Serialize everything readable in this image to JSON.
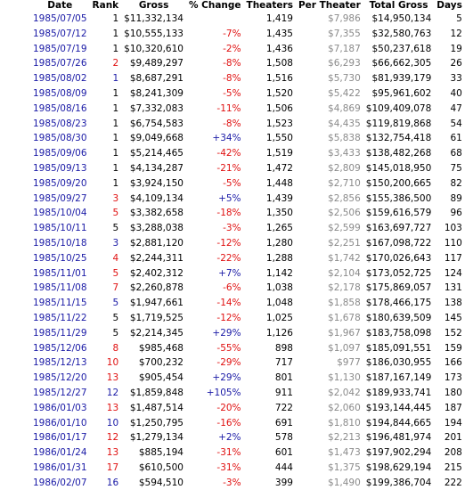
{
  "table": {
    "header": [
      "Date",
      "Rank",
      "Gross",
      "% Change",
      "Theaters",
      "Per Theater",
      "Total Gross",
      "Days"
    ],
    "rows": [
      [
        "1985/07/05",
        "1",
        "$11,332,134",
        null,
        "1,419",
        "$7,986",
        "$14,950,134",
        "5"
      ],
      [
        "1985/07/12",
        "1",
        "$10,555,133",
        "-7%",
        "1,435",
        "$7,355",
        "$32,580,763",
        "12"
      ],
      [
        "1985/07/19",
        "1",
        "$10,320,610",
        "-2%",
        "1,436",
        "$7,187",
        "$50,237,618",
        "19"
      ],
      [
        "1985/07/26",
        "2",
        "$9,489,297",
        "-8%",
        "1,508",
        "$6,293",
        "$66,662,305",
        "26"
      ],
      [
        "1985/08/02",
        "1",
        "$8,687,291",
        "-8%",
        "1,516",
        "$5,730",
        "$81,939,179",
        "33"
      ],
      [
        "1985/08/09",
        "1",
        "$8,241,309",
        "-5%",
        "1,520",
        "$5,422",
        "$95,961,602",
        "40"
      ],
      [
        "1985/08/16",
        "1",
        "$7,332,083",
        "-11%",
        "1,506",
        "$4,869",
        "$109,409,078",
        "47"
      ],
      [
        "1985/08/23",
        "1",
        "$6,754,583",
        "-8%",
        "1,523",
        "$4,435",
        "$119,819,868",
        "54"
      ],
      [
        "1985/08/30",
        "1",
        "$9,049,668",
        "+34%",
        "1,550",
        "$5,838",
        "$132,754,418",
        "61"
      ],
      [
        "1985/09/06",
        "1",
        "$5,214,465",
        "-42%",
        "1,519",
        "$3,433",
        "$138,482,268",
        "68"
      ],
      [
        "1985/09/13",
        "1",
        "$4,134,287",
        "-21%",
        "1,472",
        "$2,809",
        "$145,018,950",
        "75"
      ],
      [
        "1985/09/20",
        "1",
        "$3,924,150",
        "-5%",
        "1,448",
        "$2,710",
        "$150,200,665",
        "82"
      ],
      [
        "1985/09/27",
        "3",
        "$4,109,134",
        "+5%",
        "1,439",
        "$2,856",
        "$155,386,500",
        "89"
      ],
      [
        "1985/10/04",
        "5",
        "$3,382,658",
        "-18%",
        "1,350",
        "$2,506",
        "$159,616,579",
        "96"
      ],
      [
        "1985/10/11",
        "5",
        "$3,288,038",
        "-3%",
        "1,265",
        "$2,599",
        "$163,697,727",
        "103"
      ],
      [
        "1985/10/18",
        "3",
        "$2,881,120",
        "-12%",
        "1,280",
        "$2,251",
        "$167,098,722",
        "110"
      ],
      [
        "1985/10/25",
        "4",
        "$2,244,311",
        "-22%",
        "1,288",
        "$1,742",
        "$170,026,643",
        "117"
      ],
      [
        "1985/11/01",
        "5",
        "$2,402,312",
        "+7%",
        "1,142",
        "$2,104",
        "$173,052,725",
        "124"
      ],
      [
        "1985/11/08",
        "7",
        "$2,260,878",
        "-6%",
        "1,038",
        "$2,178",
        "$175,869,057",
        "131"
      ],
      [
        "1985/11/15",
        "5",
        "$1,947,661",
        "-14%",
        "1,048",
        "$1,858",
        "$178,466,175",
        "138"
      ],
      [
        "1985/11/22",
        "5",
        "$1,719,525",
        "-12%",
        "1,025",
        "$1,678",
        "$180,639,509",
        "145"
      ],
      [
        "1985/11/29",
        "5",
        "$2,214,345",
        "+29%",
        "1,126",
        "$1,967",
        "$183,758,098",
        "152"
      ],
      [
        "1985/12/06",
        "8",
        "$985,468",
        "-55%",
        "898",
        "$1,097",
        "$185,091,551",
        "159"
      ],
      [
        "1985/12/13",
        "10",
        "$700,232",
        "-29%",
        "717",
        "$977",
        "$186,030,955",
        "166"
      ],
      [
        "1985/12/20",
        "13",
        "$905,454",
        "+29%",
        "801",
        "$1,130",
        "$187,167,149",
        "173"
      ],
      [
        "1985/12/27",
        "12",
        "$1,859,848",
        "+105%",
        "911",
        "$2,042",
        "$189,933,741",
        "180"
      ],
      [
        "1986/01/03",
        "13",
        "$1,487,514",
        "-20%",
        "722",
        "$2,060",
        "$193,144,445",
        "187"
      ],
      [
        "1986/01/10",
        "10",
        "$1,250,795",
        "-16%",
        "691",
        "$1,810",
        "$194,844,665",
        "194"
      ],
      [
        "1986/01/17",
        "12",
        "$1,279,134",
        "+2%",
        "578",
        "$2,213",
        "$196,481,974",
        "201"
      ],
      [
        "1986/01/24",
        "13",
        "$885,194",
        "-31%",
        "601",
        "$1,473",
        "$197,902,294",
        "208"
      ],
      [
        "1986/01/31",
        "17",
        "$610,500",
        "-31%",
        "444",
        "$1,375",
        "$198,629,194",
        "215"
      ],
      [
        "1986/02/07",
        "16",
        "$594,510",
        "-3%",
        "399",
        "$1,490",
        "$199,386,704",
        "222"
      ]
    ]
  }
}
